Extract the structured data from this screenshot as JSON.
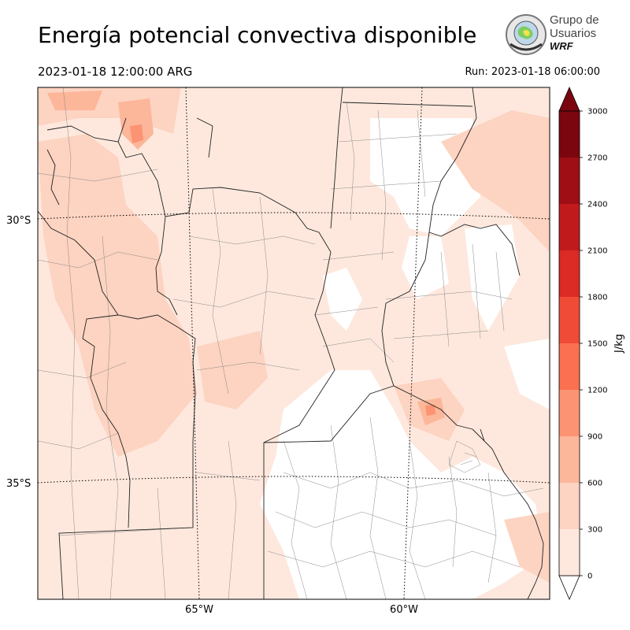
{
  "header": {
    "title": "Energía potencial convectiva disponible",
    "valid_time": "2023-01-18 12:00:00 ARG",
    "run_time": "Run: 2023-01-18 06:00:00"
  },
  "logo": {
    "line1": "Grupo de",
    "line2": "Usuarios",
    "line3": "WRF"
  },
  "map": {
    "variable": "CAPE",
    "lat_labels": [
      "30°S",
      "35°S"
    ],
    "lon_labels": [
      "65°W",
      "60°W"
    ]
  },
  "colorbar": {
    "label": "J/kg",
    "ticks": [
      "0",
      "300",
      "600",
      "900",
      "1200",
      "1500",
      "1800",
      "2100",
      "2400",
      "2700",
      "3000"
    ],
    "colors": [
      "#fee8dd",
      "#fdd3c1",
      "#fcb699",
      "#fc9372",
      "#fa7050",
      "#f04b37",
      "#dc2a25",
      "#c01a1d",
      "#a00e15",
      "#7b0610"
    ],
    "extend": "both"
  }
}
